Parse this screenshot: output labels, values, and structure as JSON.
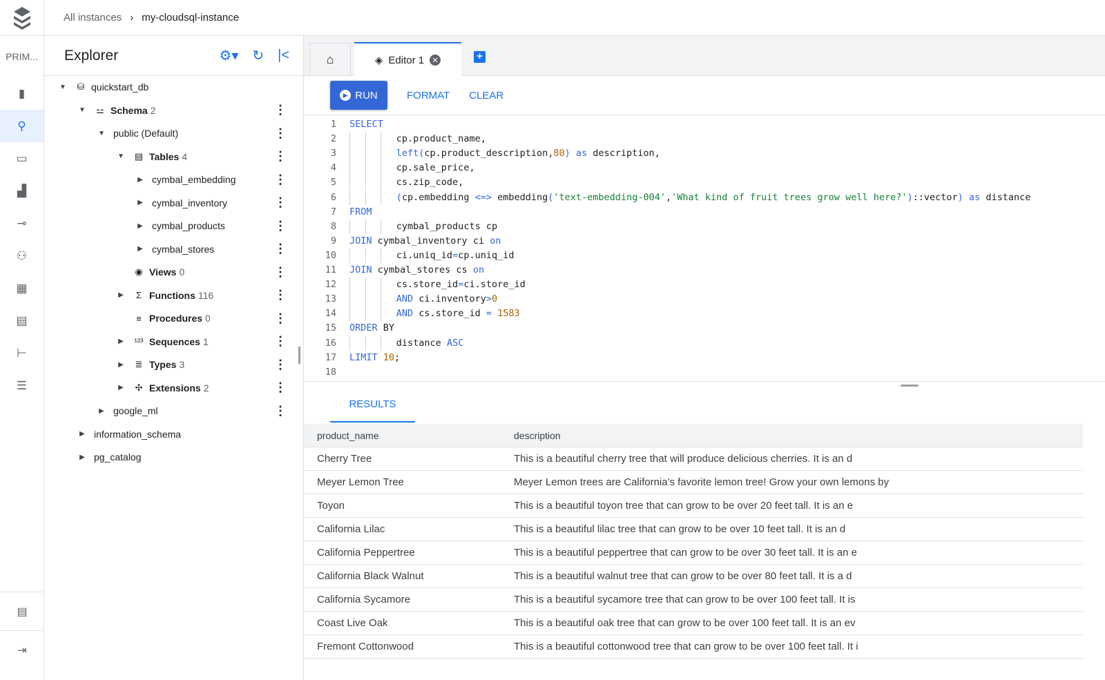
{
  "breadcrumb": {
    "parent": "All instances",
    "separator": "›",
    "current": "my-cloudsql-instance"
  },
  "rail": {
    "product_label": "PRIM...",
    "items": [
      "instance-icon",
      "search-icon",
      "monitor-icon",
      "chart-icon",
      "connection-icon",
      "users-icon",
      "database-icon",
      "studio-icon",
      "hierarchy-icon",
      "list-icon"
    ],
    "active": "search-icon",
    "bottom": [
      "notes-icon",
      "expand-icon"
    ]
  },
  "explorer": {
    "title": "Explorer",
    "tree": [
      {
        "label": "quickstart_db",
        "count": "",
        "level": 0,
        "arrow": "down",
        "icon": "database-icon",
        "glyph": "⛁",
        "bold": false,
        "more": false
      },
      {
        "label": "Schema",
        "count": "2",
        "level": 1,
        "arrow": "down",
        "icon": "schema-icon",
        "glyph": "⚍",
        "bold": true,
        "more": true
      },
      {
        "label": "public (Default)",
        "count": "",
        "level": 2,
        "arrow": "down",
        "icon": "",
        "glyph": "",
        "bold": false,
        "more": true
      },
      {
        "label": "Tables",
        "count": "4",
        "level": 3,
        "arrow": "down",
        "icon": "table-icon",
        "glyph": "▤",
        "bold": true,
        "more": true
      },
      {
        "label": "cymbal_embedding",
        "count": "",
        "level": 4,
        "arrow": "right",
        "icon": "",
        "glyph": "",
        "bold": false,
        "more": true
      },
      {
        "label": "cymbal_inventory",
        "count": "",
        "level": 4,
        "arrow": "right",
        "icon": "",
        "glyph": "",
        "bold": false,
        "more": true
      },
      {
        "label": "cymbal_products",
        "count": "",
        "level": 4,
        "arrow": "right",
        "icon": "",
        "glyph": "",
        "bold": false,
        "more": true
      },
      {
        "label": "cymbal_stores",
        "count": "",
        "level": 4,
        "arrow": "right",
        "icon": "",
        "glyph": "",
        "bold": false,
        "more": true
      },
      {
        "label": "Views",
        "count": "0",
        "level": 3,
        "arrow": "none",
        "icon": "eye-icon",
        "glyph": "◉",
        "bold": true,
        "more": true
      },
      {
        "label": "Functions",
        "count": "116",
        "level": 3,
        "arrow": "right",
        "icon": "sigma-icon",
        "glyph": "Σ",
        "bold": true,
        "more": true
      },
      {
        "label": "Procedures",
        "count": "0",
        "level": 3,
        "arrow": "none",
        "icon": "procedure-icon",
        "glyph": "≡",
        "bold": true,
        "more": true
      },
      {
        "label": "Sequences",
        "count": "1",
        "level": 3,
        "arrow": "right",
        "icon": "sequence-icon",
        "glyph": "¹²³",
        "bold": true,
        "more": true
      },
      {
        "label": "Types",
        "count": "3",
        "level": 3,
        "arrow": "right",
        "icon": "types-icon",
        "glyph": "≣",
        "bold": true,
        "more": true
      },
      {
        "label": "Extensions",
        "count": "2",
        "level": 3,
        "arrow": "right",
        "icon": "puzzle-icon",
        "glyph": "✣",
        "bold": true,
        "more": true
      },
      {
        "label": "google_ml",
        "count": "",
        "level": 2,
        "arrow": "right",
        "icon": "",
        "glyph": "",
        "bold": false,
        "more": true
      },
      {
        "label": "information_schema",
        "count": "",
        "level": 1,
        "arrow": "right",
        "icon": "",
        "glyph": "",
        "bold": false,
        "more": false
      },
      {
        "label": "pg_catalog",
        "count": "",
        "level": 1,
        "arrow": "right",
        "icon": "",
        "glyph": "",
        "bold": false,
        "more": false
      }
    ]
  },
  "tabs": {
    "editor_label": "Editor 1"
  },
  "toolbar": {
    "run": "RUN",
    "format": "FORMAT",
    "clear": "CLEAR"
  },
  "code": [
    {
      "indent": 0,
      "tokens": [
        [
          "SELECT",
          "kw"
        ]
      ]
    },
    {
      "indent": 3,
      "tokens": [
        [
          "cp.product_name,",
          ""
        ]
      ]
    },
    {
      "indent": 3,
      "tokens": [
        [
          "left(",
          "kw"
        ],
        [
          "cp.product_description,",
          ""
        ],
        [
          "80",
          "num"
        ],
        [
          ")",
          "kw"
        ],
        [
          " as ",
          "kw"
        ],
        [
          "description,",
          ""
        ]
      ]
    },
    {
      "indent": 3,
      "tokens": [
        [
          "cp.sale_price,",
          ""
        ]
      ]
    },
    {
      "indent": 3,
      "tokens": [
        [
          "cs.zip_code,",
          ""
        ]
      ]
    },
    {
      "indent": 3,
      "tokens": [
        [
          "(",
          "kw"
        ],
        [
          "cp.embedding ",
          ""
        ],
        [
          "<=>",
          "kw"
        ],
        [
          " embedding",
          ""
        ],
        [
          "(",
          "kw"
        ],
        [
          "'text-embedding-004'",
          "str"
        ],
        [
          ",",
          ""
        ],
        [
          "'What kind of fruit trees grow well here?'",
          "str"
        ],
        [
          ")",
          "kw"
        ],
        [
          "::vector",
          ""
        ],
        [
          ")",
          "kw"
        ],
        [
          " as ",
          "kw"
        ],
        [
          "distance",
          ""
        ]
      ]
    },
    {
      "indent": 0,
      "tokens": [
        [
          "FROM",
          "kw"
        ]
      ]
    },
    {
      "indent": 3,
      "tokens": [
        [
          "cymbal_products cp",
          ""
        ]
      ]
    },
    {
      "indent": 0,
      "tokens": [
        [
          "JOIN",
          "kw"
        ],
        [
          " cymbal_inventory ci ",
          ""
        ],
        [
          "on",
          "kw"
        ]
      ]
    },
    {
      "indent": 3,
      "tokens": [
        [
          "ci.uniq_id",
          ""
        ],
        [
          "=",
          "kw"
        ],
        [
          "cp.uniq_id",
          ""
        ]
      ]
    },
    {
      "indent": 0,
      "tokens": [
        [
          "JOIN",
          "kw"
        ],
        [
          " cymbal_stores cs ",
          ""
        ],
        [
          "on",
          "kw"
        ]
      ]
    },
    {
      "indent": 3,
      "tokens": [
        [
          "cs.store_id",
          ""
        ],
        [
          "=",
          "kw"
        ],
        [
          "ci.store_id",
          ""
        ]
      ]
    },
    {
      "indent": 3,
      "tokens": [
        [
          "AND",
          "kw"
        ],
        [
          " ci.inventory",
          ""
        ],
        [
          ">",
          "kw"
        ],
        [
          "0",
          "num"
        ]
      ]
    },
    {
      "indent": 3,
      "tokens": [
        [
          "AND",
          "kw"
        ],
        [
          " cs.store_id ",
          ""
        ],
        [
          "=",
          "kw"
        ],
        [
          " 1583",
          "num"
        ]
      ]
    },
    {
      "indent": 0,
      "tokens": [
        [
          "ORDER",
          "kw"
        ],
        [
          " BY",
          ""
        ]
      ]
    },
    {
      "indent": 3,
      "tokens": [
        [
          "distance ",
          ""
        ],
        [
          "ASC",
          "kw"
        ]
      ]
    },
    {
      "indent": 0,
      "tokens": [
        [
          "LIMIT",
          "kw"
        ],
        [
          " 10",
          "num"
        ],
        [
          ";",
          ""
        ]
      ]
    },
    {
      "indent": 0,
      "tokens": []
    }
  ],
  "results": {
    "tab": "RESULTS",
    "columns": [
      "product_name",
      "description"
    ],
    "rows": [
      [
        "Cherry Tree",
        "This is a beautiful cherry tree that will produce delicious cherries. It is an d"
      ],
      [
        "Meyer Lemon Tree",
        "Meyer Lemon trees are California's favorite lemon tree! Grow your own lemons by"
      ],
      [
        "Toyon",
        "This is a beautiful toyon tree that can grow to be over 20 feet tall. It is an e"
      ],
      [
        "California Lilac",
        "This is a beautiful lilac tree that can grow to be over 10 feet tall. It is an d"
      ],
      [
        "California Peppertree",
        "This is a beautiful peppertree that can grow to be over 30 feet tall. It is an e"
      ],
      [
        "California Black Walnut",
        "This is a beautiful walnut tree that can grow to be over 80 feet tall. It is a d"
      ],
      [
        "California Sycamore",
        "This is a beautiful sycamore tree that can grow to be over 100 feet tall. It is"
      ],
      [
        "Coast Live Oak",
        "This is a beautiful oak tree that can grow to be over 100 feet tall. It is an ev"
      ],
      [
        "Fremont Cottonwood",
        "This is a beautiful cottonwood tree that can grow to be over 100 feet tall. It i"
      ]
    ]
  },
  "colors": {
    "accent": "#1a73e8",
    "run_button": "#3367d6",
    "keyword": "#3367d6",
    "number": "#b06000",
    "string": "#188038"
  }
}
